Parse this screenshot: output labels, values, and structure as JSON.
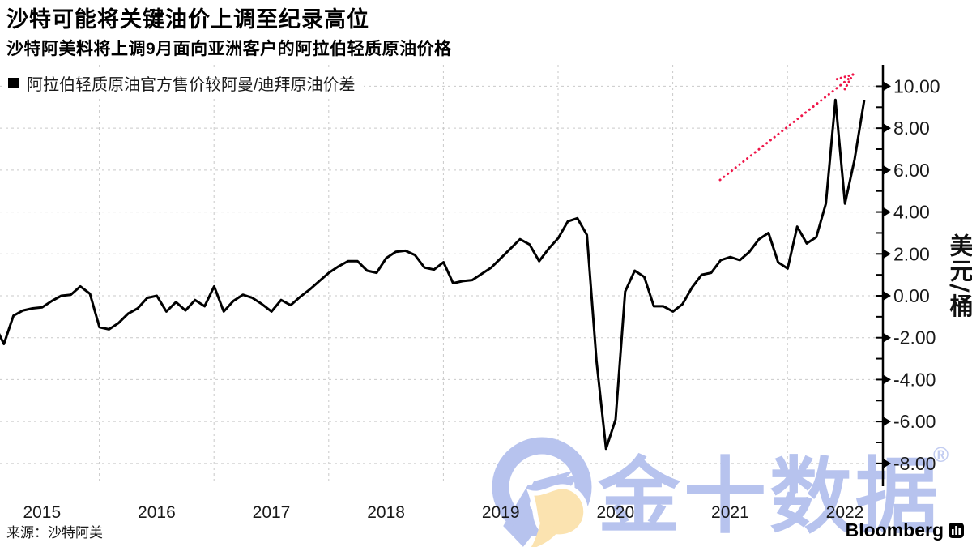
{
  "title": "沙特可能将关键油价上调至纪录高位",
  "subtitle": "沙特阿美料将上调9月面向亚洲客户的阿拉伯轻质原油价格",
  "legend": {
    "label": "阿拉伯轻质原油官方售价较阿曼/迪拜原油价差",
    "marker_color": "#000000"
  },
  "source": "来源：沙特阿美",
  "brand": {
    "name": "Bloomberg"
  },
  "watermark": {
    "text": "金十数据",
    "registered_mark": "®",
    "color": "#b7c3ee",
    "accent_color": "#fbe3b0"
  },
  "y_axis": {
    "unit_label_chars": [
      "美",
      "元",
      "/",
      "桶"
    ],
    "major_tick_labels": [
      "10.00",
      "8.00",
      "6.00",
      "4.00",
      "2.00",
      "0.00",
      "-2.00",
      "-4.00",
      "-6.00",
      "-8.00"
    ],
    "major_tick_values": [
      10,
      8,
      6,
      4,
      2,
      0,
      -2,
      -4,
      -6,
      -8
    ],
    "minor_tick_values": [
      9,
      7,
      5,
      3,
      1,
      -1,
      -3,
      -5,
      -7
    ]
  },
  "x_axis": {
    "labels": [
      "2015",
      "2016",
      "2017",
      "2018",
      "2019",
      "2020",
      "2021",
      "2022"
    ]
  },
  "chart_data": {
    "type": "line",
    "title": "沙特可能将关键油价上调至纪录高位",
    "subtitle": "沙特阿美料将上调9月面向亚洲客户的阿拉伯轻质原油价格",
    "series_name": "阿拉伯轻质原油官方售价较阿曼/迪拜原油价差",
    "ylabel": "美元/桶",
    "frequency": "monthly",
    "start": "2015-01",
    "end": "2022-08",
    "line_color": "#000000",
    "grid": "dashed",
    "legend_position": "top-left",
    "ylim": [
      -9,
      11
    ],
    "x_tick_years": [
      2015,
      2016,
      2017,
      2018,
      2019,
      2020,
      2021,
      2022
    ],
    "values": [
      -1.35,
      -2.3,
      -0.95,
      -0.7,
      -0.6,
      -0.55,
      -0.25,
      0.0,
      0.05,
      0.45,
      0.1,
      -1.5,
      -1.6,
      -1.3,
      -0.85,
      -0.6,
      -0.1,
      0.0,
      -0.75,
      -0.3,
      -0.7,
      -0.2,
      -0.5,
      0.45,
      -0.75,
      -0.25,
      0.05,
      -0.1,
      -0.4,
      -0.75,
      -0.2,
      -0.45,
      -0.05,
      0.3,
      0.7,
      1.1,
      1.4,
      1.65,
      1.65,
      1.2,
      1.1,
      1.8,
      2.1,
      2.15,
      1.95,
      1.35,
      1.25,
      1.6,
      0.6,
      0.7,
      0.75,
      1.05,
      1.35,
      1.8,
      2.25,
      2.7,
      2.45,
      1.65,
      2.25,
      2.75,
      3.55,
      3.7,
      2.9,
      -3.1,
      -7.3,
      -5.9,
      0.2,
      1.2,
      0.9,
      -0.5,
      -0.5,
      -0.75,
      -0.4,
      0.4,
      1.0,
      1.1,
      1.7,
      1.85,
      1.7,
      2.1,
      2.7,
      3.0,
      1.6,
      1.3,
      3.3,
      2.5,
      2.8,
      4.4,
      9.35,
      4.4,
      6.5,
      9.3
    ],
    "annotation": {
      "type": "arrow",
      "style": "dotted",
      "color": "#ef1649",
      "meaning": "预期9月官方售价升至纪录高位",
      "from_month": "2021-06",
      "from_value": 5.5,
      "to_month": "2022-08",
      "to_value": 10.5
    }
  }
}
